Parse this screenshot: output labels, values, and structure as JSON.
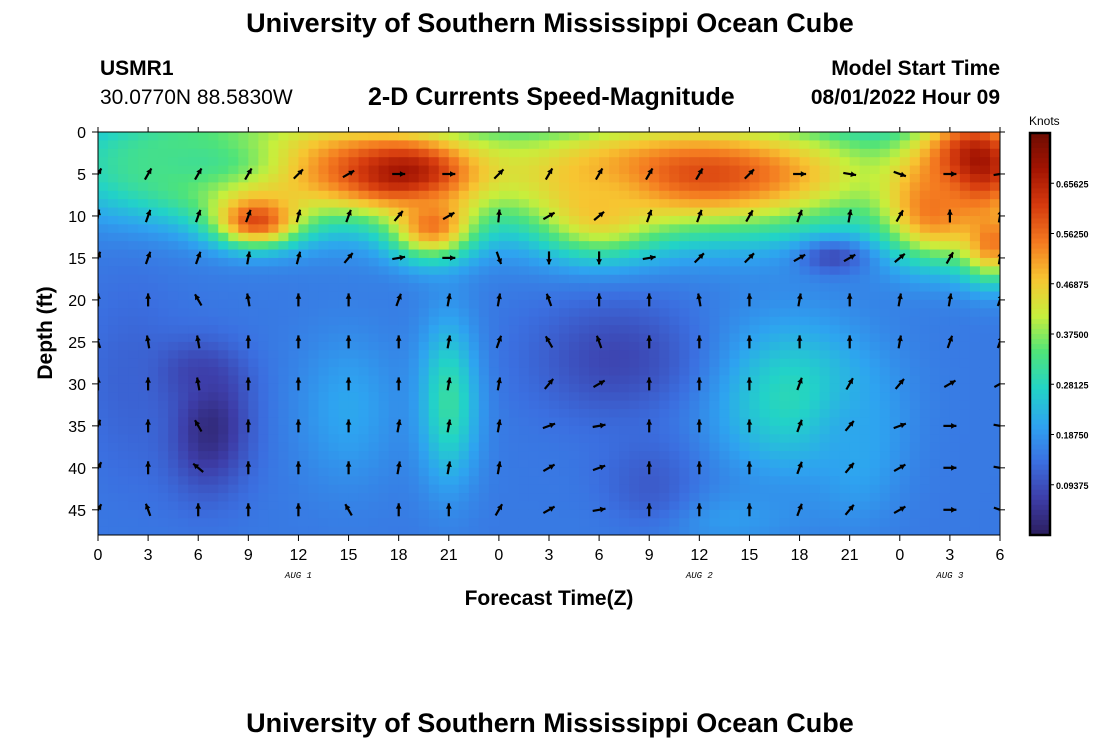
{
  "header": {
    "title": "University of Southern Mississippi Ocean Cube",
    "station_id": "USMR1",
    "station_coords": "30.0770N  88.5830W",
    "subtitle": "2-D Currents Speed-Magnitude",
    "model_start_label": "Model Start Time",
    "model_start_value": "08/01/2022 Hour 09"
  },
  "footer": {
    "title": "University of Southern Mississippi Ocean Cube"
  },
  "colors": {
    "colormap": [
      "#2b1e5e",
      "#3d3da8",
      "#3b6fe0",
      "#2ea3f0",
      "#22d3c7",
      "#4ee37a",
      "#c7ef3c",
      "#f7c531",
      "#f47a20",
      "#d63b0e",
      "#a31402",
      "#6e0c02"
    ],
    "arrow": "#000000"
  },
  "chart_data": {
    "type": "heatmap",
    "title": "2-D Currents Speed-Magnitude",
    "xlabel": "Forecast Time(Z)",
    "ylabel": "Depth (ft)",
    "x_ticks": [
      "0",
      "3",
      "6",
      "9",
      "12",
      "15",
      "18",
      "21",
      "0",
      "3",
      "6",
      "9",
      "12",
      "15",
      "18",
      "21",
      "0",
      "3",
      "6"
    ],
    "x_dates": [
      {
        "label": "AUG 1",
        "tick_index": 4
      },
      {
        "label": "AUG 2",
        "tick_index": 12
      },
      {
        "label": "AUG 3",
        "tick_index": 17
      }
    ],
    "y_ticks": [
      "0",
      "5",
      "10",
      "15",
      "20",
      "25",
      "30",
      "35",
      "40",
      "45"
    ],
    "ylim": [
      0,
      48
    ],
    "xlim_hours": [
      0,
      54
    ],
    "colorbar": {
      "title": "Knots",
      "range": [
        0,
        0.75
      ],
      "tick_labels": [
        "0.65625",
        "0.56250",
        "0.46875",
        "0.37500",
        "0.28125",
        "0.18750",
        "0.09375"
      ],
      "tick_values": [
        0.65625,
        0.5625,
        0.46875,
        0.375,
        0.28125,
        0.1875,
        0.09375
      ]
    },
    "speed_features": [
      {
        "hour": 13.0,
        "depth": 4.0,
        "hw": 11.5,
        "hd": 6.5,
        "value": 0.58
      },
      {
        "hour": 6.0,
        "depth": 3.5,
        "hw": 6.5,
        "hd": 5.0,
        "value": 0.32
      },
      {
        "hour": 18.5,
        "depth": 5.0,
        "hw": 3.5,
        "hd": 3.5,
        "value": 0.7
      },
      {
        "hour": 9.5,
        "depth": 10.5,
        "hw": 2.5,
        "hd": 3.0,
        "value": 0.6
      },
      {
        "hour": 20.0,
        "depth": 11.0,
        "hw": 2.5,
        "hd": 4.0,
        "value": 0.55
      },
      {
        "hour": 36.0,
        "depth": 5.0,
        "hw": 12.0,
        "hd": 7.0,
        "value": 0.6
      },
      {
        "hour": 30.0,
        "depth": 9.0,
        "hw": 3.5,
        "hd": 5.5,
        "value": 0.48
      },
      {
        "hour": 52.5,
        "depth": 4.0,
        "hw": 3.5,
        "hd": 7.0,
        "value": 0.72
      },
      {
        "hour": 50.0,
        "depth": 9.0,
        "hw": 3.0,
        "hd": 6.0,
        "value": 0.55
      },
      {
        "hour": 53.5,
        "depth": 13.0,
        "hw": 1.8,
        "hd": 4.5,
        "value": 0.55
      },
      {
        "hour": 6.5,
        "depth": 35.0,
        "hw": 2.5,
        "hd": 7.5,
        "value": 0.02
      },
      {
        "hour": 5.0,
        "depth": 29.0,
        "hw": 3.0,
        "hd": 3.5,
        "value": 0.06
      },
      {
        "hour": 21.0,
        "depth": 32.0,
        "hw": 1.8,
        "hd": 9.5,
        "value": 0.31
      },
      {
        "hour": 41.5,
        "depth": 31.5,
        "hw": 5.0,
        "hd": 9.0,
        "value": 0.29
      },
      {
        "hour": 31.0,
        "depth": 27.0,
        "hw": 5.0,
        "hd": 7.0,
        "value": 0.08
      },
      {
        "hour": 44.0,
        "depth": 15.0,
        "hw": 2.0,
        "hd": 2.0,
        "value": 0.09
      },
      {
        "hour": 15.0,
        "depth": 33.0,
        "hw": 3.0,
        "hd": 9.0,
        "value": 0.21
      },
      {
        "hour": 45.5,
        "depth": 38.0,
        "hw": 2.5,
        "hd": 8.0,
        "value": 0.21
      },
      {
        "hour": 2.0,
        "depth": 30.0,
        "hw": 3.0,
        "hd": 12.0,
        "value": 0.12
      },
      {
        "hour": 37.0,
        "depth": 46.0,
        "hw": 5.0,
        "hd": 3.5,
        "value": 0.2
      },
      {
        "hour": 33.0,
        "depth": 42.0,
        "hw": 3.0,
        "hd": 6.0,
        "value": 0.11
      }
    ],
    "arrow_hours": [
      0,
      3,
      6,
      9,
      12,
      15,
      18,
      21,
      24,
      27,
      30,
      33,
      36,
      39,
      42,
      45,
      48,
      51,
      54
    ],
    "arrow_depths": [
      5,
      10,
      15,
      20,
      25,
      30,
      35,
      40,
      45
    ],
    "arrow_directions_deg": [
      [
        30,
        30,
        30,
        30,
        45,
        60,
        90,
        90,
        45,
        30,
        30,
        30,
        30,
        45,
        90,
        100,
        110,
        90,
        80
      ],
      [
        10,
        20,
        20,
        20,
        15,
        20,
        40,
        60,
        5,
        60,
        50,
        20,
        20,
        30,
        20,
        10,
        30,
        0,
        10
      ],
      [
        20,
        20,
        20,
        10,
        15,
        40,
        80,
        90,
        160,
        180,
        180,
        80,
        45,
        45,
        60,
        60,
        50,
        30,
        10
      ],
      [
        0,
        0,
        -30,
        -10,
        0,
        0,
        20,
        10,
        10,
        -20,
        0,
        0,
        -10,
        0,
        10,
        0,
        10,
        10,
        20
      ],
      [
        -20,
        -10,
        -10,
        0,
        0,
        0,
        0,
        10,
        20,
        -30,
        -20,
        0,
        0,
        0,
        0,
        0,
        10,
        20,
        20
      ],
      [
        0,
        0,
        -10,
        0,
        0,
        0,
        0,
        10,
        10,
        40,
        60,
        0,
        0,
        0,
        20,
        30,
        40,
        60,
        60
      ],
      [
        20,
        0,
        -30,
        0,
        0,
        0,
        10,
        10,
        10,
        70,
        80,
        0,
        0,
        0,
        20,
        40,
        70,
        90,
        100
      ],
      [
        30,
        0,
        -50,
        0,
        0,
        0,
        10,
        10,
        10,
        60,
        70,
        0,
        0,
        0,
        20,
        40,
        60,
        90,
        100
      ],
      [
        30,
        -20,
        0,
        0,
        0,
        -30,
        0,
        0,
        30,
        60,
        80,
        0,
        0,
        0,
        20,
        40,
        60,
        90,
        110
      ]
    ]
  }
}
